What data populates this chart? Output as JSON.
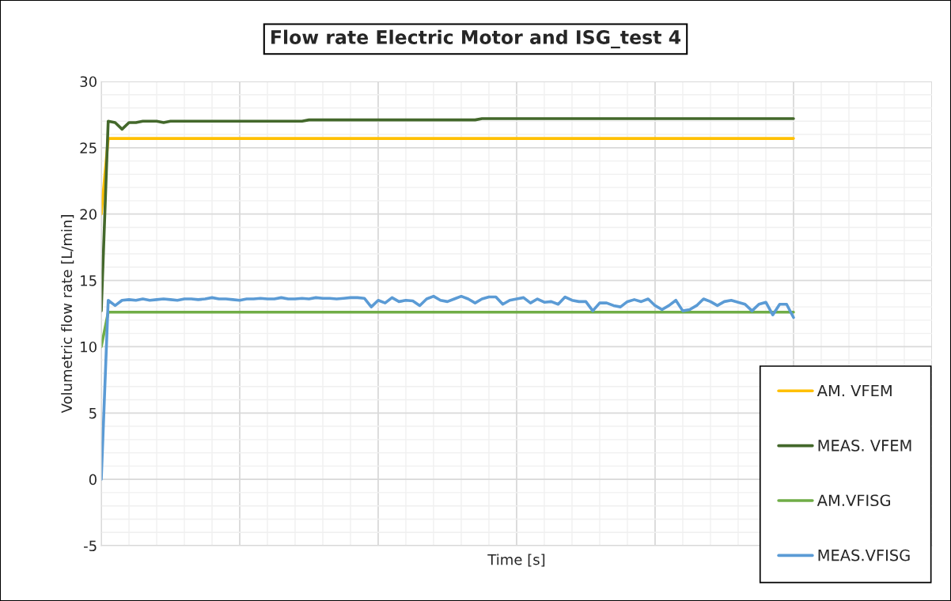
{
  "chart_data": {
    "type": "line",
    "title": "Flow rate Electric Motor and ISG_test 4",
    "xlabel": "Time [s]",
    "ylabel": "Volumetric flow rate [L/min]",
    "categories": [
      null,
      null,
      null,
      null,
      null,
      null,
      null,
      null,
      null,
      null,
      null,
      null,
      null,
      null,
      null,
      null,
      null,
      null,
      null,
      null,
      null,
      null,
      null,
      null,
      null,
      null,
      null,
      null,
      null,
      null,
      null,
      null,
      null,
      null,
      null,
      null,
      null,
      null,
      null,
      null,
      null,
      null,
      null,
      null,
      null,
      null,
      null,
      null,
      null,
      null,
      null,
      null,
      null,
      null,
      null,
      null,
      null,
      null,
      null,
      null,
      null,
      null,
      null,
      null,
      null,
      null,
      null,
      null,
      null,
      null,
      null,
      null,
      null,
      null,
      null,
      null,
      null,
      null,
      null,
      null,
      null,
      null,
      null,
      null,
      null,
      null,
      null,
      null,
      null,
      null,
      null,
      null,
      null,
      null,
      null,
      null,
      null,
      null,
      null,
      null,
      null
    ],
    "series": [
      {
        "name": "AM. VFEM",
        "color": "#ffc000",
        "values": [
          20,
          25.7,
          25.7,
          25.7,
          25.7,
          25.7,
          25.7,
          25.7,
          25.7,
          25.7,
          25.7,
          25.7,
          25.7,
          25.7,
          25.7,
          25.7,
          25.7,
          25.7,
          25.7,
          25.7,
          25.7,
          25.7,
          25.7,
          25.7,
          25.7,
          25.7,
          25.7,
          25.7,
          25.7,
          25.7,
          25.7,
          25.7,
          25.7,
          25.7,
          25.7,
          25.7,
          25.7,
          25.7,
          25.7,
          25.7,
          25.7,
          25.7,
          25.7,
          25.7,
          25.7,
          25.7,
          25.7,
          25.7,
          25.7,
          25.7,
          25.7,
          25.7,
          25.7,
          25.7,
          25.7,
          25.7,
          25.7,
          25.7,
          25.7,
          25.7,
          25.7,
          25.7,
          25.7,
          25.7,
          25.7,
          25.7,
          25.7,
          25.7,
          25.7,
          25.7,
          25.7,
          25.7,
          25.7,
          25.7,
          25.7,
          25.7,
          25.7,
          25.7,
          25.7,
          25.7,
          25.7,
          25.7,
          25.7,
          25.7,
          25.7,
          25.7,
          25.7,
          25.7,
          25.7,
          25.7,
          25.7,
          25.7,
          25.7,
          25.7,
          25.7,
          25.7,
          25.7,
          25.7,
          25.7,
          25.7,
          25.7
        ]
      },
      {
        "name": "MEAS. VFEM",
        "color": "#43682b",
        "values": [
          12.7,
          27.0,
          26.9,
          26.4,
          26.9,
          26.9,
          27.0,
          27.0,
          27.0,
          26.9,
          27.0,
          27.0,
          27.0,
          27.0,
          27.0,
          27.0,
          27.0,
          27.0,
          27.0,
          27.0,
          27.0,
          27.0,
          27.0,
          27.0,
          27.0,
          27.0,
          27.0,
          27.0,
          27.0,
          27.0,
          27.1,
          27.1,
          27.1,
          27.1,
          27.1,
          27.1,
          27.1,
          27.1,
          27.1,
          27.1,
          27.1,
          27.1,
          27.1,
          27.1,
          27.1,
          27.1,
          27.1,
          27.1,
          27.1,
          27.1,
          27.1,
          27.1,
          27.1,
          27.1,
          27.1,
          27.2,
          27.2,
          27.2,
          27.2,
          27.2,
          27.2,
          27.2,
          27.2,
          27.2,
          27.2,
          27.2,
          27.2,
          27.2,
          27.2,
          27.2,
          27.2,
          27.2,
          27.2,
          27.2,
          27.2,
          27.2,
          27.2,
          27.2,
          27.2,
          27.2,
          27.2,
          27.2,
          27.2,
          27.2,
          27.2,
          27.2,
          27.2,
          27.2,
          27.2,
          27.2,
          27.2,
          27.2,
          27.2,
          27.2,
          27.2,
          27.2,
          27.2,
          27.2,
          27.2,
          27.2,
          27.2
        ]
      },
      {
        "name": "AM.VFISG",
        "color": "#70ad47",
        "values": [
          10,
          12.6,
          12.6,
          12.6,
          12.6,
          12.6,
          12.6,
          12.6,
          12.6,
          12.6,
          12.6,
          12.6,
          12.6,
          12.6,
          12.6,
          12.6,
          12.6,
          12.6,
          12.6,
          12.6,
          12.6,
          12.6,
          12.6,
          12.6,
          12.6,
          12.6,
          12.6,
          12.6,
          12.6,
          12.6,
          12.6,
          12.6,
          12.6,
          12.6,
          12.6,
          12.6,
          12.6,
          12.6,
          12.6,
          12.6,
          12.6,
          12.6,
          12.6,
          12.6,
          12.6,
          12.6,
          12.6,
          12.6,
          12.6,
          12.6,
          12.6,
          12.6,
          12.6,
          12.6,
          12.6,
          12.6,
          12.6,
          12.6,
          12.6,
          12.6,
          12.6,
          12.6,
          12.6,
          12.6,
          12.6,
          12.6,
          12.6,
          12.6,
          12.6,
          12.6,
          12.6,
          12.6,
          12.6,
          12.6,
          12.6,
          12.6,
          12.6,
          12.6,
          12.6,
          12.6,
          12.6,
          12.6,
          12.6,
          12.6,
          12.6,
          12.6,
          12.6,
          12.6,
          12.6,
          12.6,
          12.6,
          12.6,
          12.6,
          12.6,
          12.6,
          12.6,
          12.6,
          12.6,
          12.6,
          12.6,
          12.6
        ]
      },
      {
        "name": "MEAS.VFISG",
        "color": "#5b9bd5",
        "values": [
          0,
          13.5,
          13.1,
          13.5,
          13.55,
          13.5,
          13.6,
          13.5,
          13.55,
          13.6,
          13.55,
          13.5,
          13.6,
          13.6,
          13.55,
          13.6,
          13.7,
          13.6,
          13.6,
          13.55,
          13.5,
          13.6,
          13.6,
          13.65,
          13.6,
          13.6,
          13.7,
          13.6,
          13.6,
          13.65,
          13.6,
          13.7,
          13.65,
          13.65,
          13.6,
          13.65,
          13.7,
          13.7,
          13.65,
          13.0,
          13.5,
          13.3,
          13.7,
          13.4,
          13.5,
          13.45,
          13.1,
          13.6,
          13.8,
          13.5,
          13.4,
          13.6,
          13.8,
          13.6,
          13.3,
          13.6,
          13.75,
          13.75,
          13.2,
          13.5,
          13.6,
          13.7,
          13.3,
          13.6,
          13.35,
          13.4,
          13.2,
          13.75,
          13.5,
          13.4,
          13.4,
          12.7,
          13.3,
          13.3,
          13.1,
          13.0,
          13.4,
          13.55,
          13.4,
          13.6,
          13.1,
          12.8,
          13.1,
          13.5,
          12.7,
          12.8,
          13.1,
          13.6,
          13.4,
          13.1,
          13.4,
          13.5,
          13.35,
          13.2,
          12.7,
          13.2,
          13.35,
          12.4,
          13.2,
          13.2,
          12.2
        ]
      }
    ],
    "ylim": [
      -5,
      30
    ],
    "yticks": [
      -5,
      0,
      5,
      10,
      15,
      20,
      25,
      30
    ],
    "grid": true,
    "legend": "bottom right",
    "marker": "none",
    "line_style": "solid"
  }
}
